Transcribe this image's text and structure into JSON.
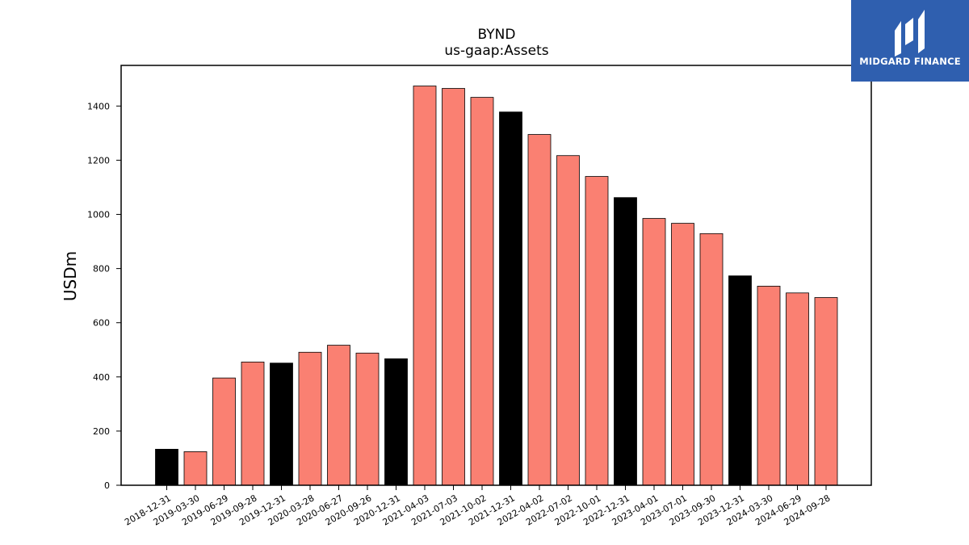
{
  "brand": {
    "name": "MIDGARD FINANCE",
    "bg": "#2f5faf"
  },
  "chart_data": {
    "type": "bar",
    "title": "BYND",
    "subtitle": "us-gaap:Assets",
    "ylabel": "USDm",
    "xlabel": "",
    "ylim": [
      0,
      1550
    ],
    "yticks": [
      0,
      200,
      400,
      600,
      800,
      1000,
      1200,
      1400
    ],
    "categories": [
      "2018-12-31",
      "2019-03-30",
      "2019-06-29",
      "2019-09-28",
      "2019-12-31",
      "2020-03-28",
      "2020-06-27",
      "2020-09-26",
      "2020-12-31",
      "2021-04-03",
      "2021-07-03",
      "2021-10-02",
      "2021-12-31",
      "2022-04-02",
      "2022-07-02",
      "2022-10-01",
      "2022-12-31",
      "2023-04-01",
      "2023-07-01",
      "2023-09-30",
      "2023-12-31",
      "2024-03-30",
      "2024-06-29",
      "2024-09-28"
    ],
    "values": [
      133,
      124,
      396,
      455,
      451,
      491,
      517,
      488,
      467,
      1474,
      1465,
      1432,
      1378,
      1295,
      1217,
      1140,
      1062,
      985,
      967,
      929,
      773,
      735,
      710,
      693
    ],
    "annual": [
      true,
      false,
      false,
      false,
      true,
      false,
      false,
      false,
      true,
      false,
      false,
      false,
      true,
      false,
      false,
      false,
      true,
      false,
      false,
      false,
      true,
      false,
      false,
      false
    ],
    "colors": {
      "annual": "#000000",
      "quarterly": "#fa8072",
      "edge": "#000000"
    },
    "grid": false,
    "legend": "none"
  }
}
